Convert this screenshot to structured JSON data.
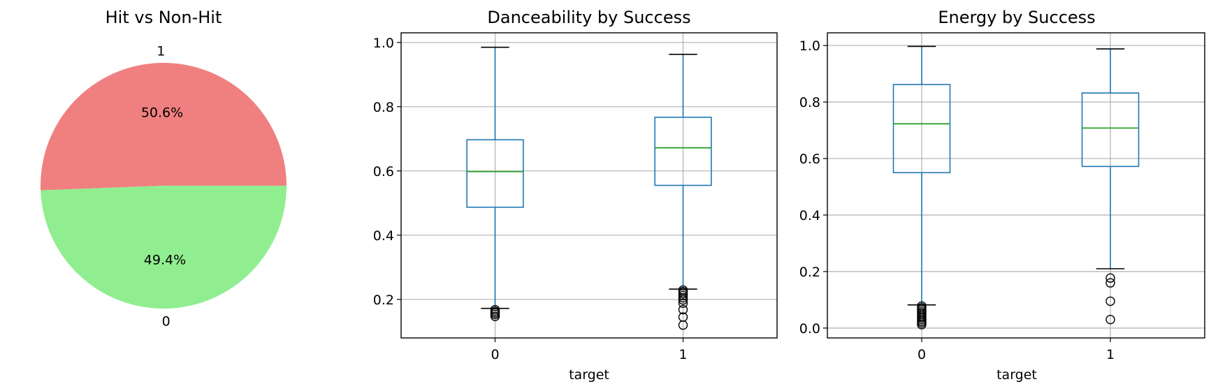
{
  "chart_data": [
    {
      "type": "pie",
      "title": "Hit vs Non-Hit",
      "labels": [
        "1",
        "0"
      ],
      "values": [
        50.6,
        49.4
      ],
      "percent_labels": [
        "50.6%",
        "49.4%"
      ],
      "colors": [
        "#f08080",
        "#90ee90"
      ]
    },
    {
      "type": "boxplot",
      "title": "Danceability by Success",
      "xlabel": "target",
      "ylabel": "",
      "categories": [
        "0",
        "1"
      ],
      "ylim": [
        0.08,
        1.03
      ],
      "yticks": [
        0.2,
        0.4,
        0.6,
        0.8,
        1.0
      ],
      "ytick_labels": [
        "0.2",
        "0.4",
        "0.6",
        "0.8",
        "1.0"
      ],
      "grid": true,
      "boxes": [
        {
          "whisker_low": 0.172,
          "q1": 0.487,
          "median": 0.598,
          "q3": 0.697,
          "whisker_high": 0.985,
          "outliers": [
            0.147,
            0.153,
            0.158,
            0.163,
            0.168
          ]
        },
        {
          "whisker_low": 0.232,
          "q1": 0.555,
          "median": 0.672,
          "q3": 0.767,
          "whisker_high": 0.963,
          "outliers": [
            0.12,
            0.145,
            0.168,
            0.188,
            0.198,
            0.205,
            0.212,
            0.218,
            0.224,
            0.229
          ]
        }
      ],
      "colors": {
        "box": "#1f77b4",
        "median": "#2ca02c"
      }
    },
    {
      "type": "boxplot",
      "title": "Energy by Success",
      "xlabel": "target",
      "ylabel": "",
      "categories": [
        "0",
        "1"
      ],
      "ylim": [
        -0.035,
        1.045
      ],
      "yticks": [
        0.0,
        0.2,
        0.4,
        0.6,
        0.8,
        1.0
      ],
      "ytick_labels": [
        "0.0",
        "0.2",
        "0.4",
        "0.6",
        "0.8",
        "1.0"
      ],
      "grid": true,
      "boxes": [
        {
          "whisker_low": 0.082,
          "q1": 0.55,
          "median": 0.723,
          "q3": 0.862,
          "whisker_high": 0.997,
          "outliers": [
            0.012,
            0.018,
            0.024,
            0.03,
            0.036,
            0.042,
            0.048,
            0.054,
            0.06,
            0.066,
            0.072,
            0.078
          ]
        },
        {
          "whisker_low": 0.21,
          "q1": 0.572,
          "median": 0.708,
          "q3": 0.832,
          "whisker_high": 0.988,
          "outliers": [
            0.03,
            0.095,
            0.16,
            0.177
          ]
        }
      ],
      "colors": {
        "box": "#1f77b4",
        "median": "#2ca02c"
      }
    }
  ]
}
